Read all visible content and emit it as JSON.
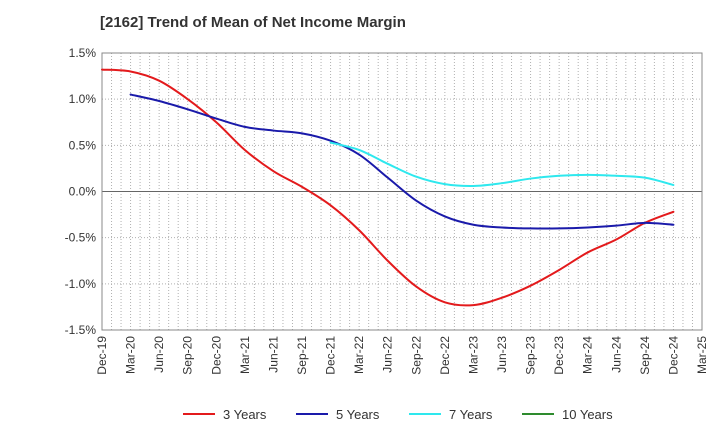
{
  "chart_data": {
    "type": "line",
    "title": "[2162]  Trend of Mean of Net Income Margin",
    "x_ticks": [
      "Dec-19",
      "Mar-20",
      "Jun-20",
      "Sep-20",
      "Dec-20",
      "Mar-21",
      "Jun-21",
      "Sep-21",
      "Dec-21",
      "Mar-22",
      "Jun-22",
      "Sep-22",
      "Dec-22",
      "Mar-23",
      "Jun-23",
      "Sep-23",
      "Dec-23",
      "Mar-24",
      "Jun-24",
      "Sep-24",
      "Dec-24",
      "Mar-25"
    ],
    "y_ticks": [
      "1.5%",
      "1.0%",
      "0.5%",
      "0.0%",
      "-0.5%",
      "-1.0%",
      "-1.5%"
    ],
    "ylim": [
      -1.5,
      1.5
    ],
    "grid": true,
    "legend_position": "bottom",
    "series": [
      {
        "name": "3 Years",
        "color": "#e31a1c",
        "points": [
          [
            "Dec-19",
            1.32
          ],
          [
            "Mar-20",
            1.3
          ],
          [
            "Jun-20",
            1.2
          ],
          [
            "Sep-20",
            1.0
          ],
          [
            "Dec-20",
            0.75
          ],
          [
            "Mar-21",
            0.45
          ],
          [
            "Jun-21",
            0.22
          ],
          [
            "Sep-21",
            0.05
          ],
          [
            "Dec-21",
            -0.15
          ],
          [
            "Mar-22",
            -0.42
          ],
          [
            "Jun-22",
            -0.75
          ],
          [
            "Sep-22",
            -1.03
          ],
          [
            "Dec-22",
            -1.2
          ],
          [
            "Mar-23",
            -1.23
          ],
          [
            "Jun-23",
            -1.15
          ],
          [
            "Sep-23",
            -1.02
          ],
          [
            "Dec-23",
            -0.85
          ],
          [
            "Mar-24",
            -0.66
          ],
          [
            "Jun-24",
            -0.52
          ],
          [
            "Sep-24",
            -0.34
          ],
          [
            "Dec-24",
            -0.22
          ]
        ]
      },
      {
        "name": "5 Years",
        "color": "#1a1aaa",
        "points": [
          [
            "Mar-20",
            1.05
          ],
          [
            "Jun-20",
            0.98
          ],
          [
            "Sep-20",
            0.89
          ],
          [
            "Dec-20",
            0.79
          ],
          [
            "Mar-21",
            0.7
          ],
          [
            "Jun-21",
            0.66
          ],
          [
            "Sep-21",
            0.63
          ],
          [
            "Dec-21",
            0.55
          ],
          [
            "Mar-22",
            0.4
          ],
          [
            "Jun-22",
            0.15
          ],
          [
            "Sep-22",
            -0.1
          ],
          [
            "Dec-22",
            -0.27
          ],
          [
            "Mar-23",
            -0.36
          ],
          [
            "Jun-23",
            -0.39
          ],
          [
            "Sep-23",
            -0.4
          ],
          [
            "Dec-23",
            -0.4
          ],
          [
            "Mar-24",
            -0.39
          ],
          [
            "Jun-24",
            -0.37
          ],
          [
            "Sep-24",
            -0.34
          ],
          [
            "Dec-24",
            -0.36
          ]
        ]
      },
      {
        "name": "7 Years",
        "color": "#2ee8ee",
        "points": [
          [
            "Dec-21",
            0.53
          ],
          [
            "Mar-22",
            0.45
          ],
          [
            "Jun-22",
            0.3
          ],
          [
            "Sep-22",
            0.16
          ],
          [
            "Dec-22",
            0.08
          ],
          [
            "Mar-23",
            0.06
          ],
          [
            "Jun-23",
            0.09
          ],
          [
            "Sep-23",
            0.14
          ],
          [
            "Dec-23",
            0.17
          ],
          [
            "Mar-24",
            0.18
          ],
          [
            "Jun-24",
            0.17
          ],
          [
            "Sep-24",
            0.15
          ],
          [
            "Dec-24",
            0.07
          ]
        ]
      },
      {
        "name": "10 Years",
        "color": "#2e8b2e",
        "points": []
      }
    ]
  }
}
